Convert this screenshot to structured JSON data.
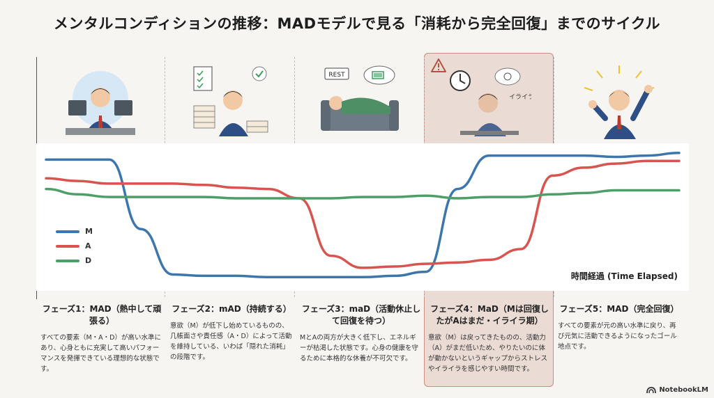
{
  "title": "メンタルコンディションの推移：MADモデルで見る「消耗から完全回復」までのサイクル",
  "illustrations": {
    "rest_sign": "REST",
    "irritation_word": "イライラ"
  },
  "phases": [
    {
      "title": "フェーズ1：MAD（熱中して頑張る）",
      "desc": "すべての要素（M・A・D）が高い水準にあり、心身ともに充実して高いパフォーマンスを発揮できている理想的な状態です。"
    },
    {
      "title": "フェーズ2：mAD（持続する）",
      "desc": "意欲（M）が低下し始めているものの、几帳面さや責任感（A・D）によって活動を維持している、いわば「隠れた消耗」の段階です。"
    },
    {
      "title": "フェーズ3：maD（活動休止して回復を待つ）",
      "desc": "MとAの両方が大きく低下し、エネルギーが枯渇した状態です。心身の健康を守るために本格的な休養が不可欠です。"
    },
    {
      "title": "フェーズ4：MaD（Mは回復したがAはまだ・イライラ期）",
      "desc": "意欲（M）は戻ってきたものの、活動力（A）がまだ低いため、やりたいのに体が動かないというギャップからストレスやイライラを感じやすい時間です。"
    },
    {
      "title": "フェーズ5：MAD（完全回復）",
      "desc": "すべての要素が元の高い水準に戻り、再び元気に活動できるようになったゴール地点です。"
    }
  ],
  "brand": "NotebookLM",
  "chart_data": {
    "type": "line",
    "title": "",
    "xlabel": "時間経過 (Time Elapsed)",
    "ylabel": "",
    "x": [
      0,
      5,
      10,
      15,
      20,
      25,
      30,
      35,
      40,
      45,
      50,
      55,
      60,
      65,
      70,
      75,
      80,
      85,
      90,
      95,
      100
    ],
    "xlim": [
      0,
      100
    ],
    "ylim": [
      0,
      100
    ],
    "grid": false,
    "legend_position": "left",
    "series": [
      {
        "name": "M",
        "color": "#3c76ad",
        "values": [
          92,
          92,
          92,
          40,
          6,
          5,
          5,
          4,
          4,
          4,
          4,
          5,
          8,
          70,
          95,
          95,
          95,
          95,
          94,
          95,
          97
        ]
      },
      {
        "name": "A",
        "color": "#d9534f",
        "values": [
          78,
          76,
          74,
          74,
          74,
          73,
          71,
          70,
          63,
          20,
          11,
          12,
          14,
          15,
          17,
          25,
          80,
          86,
          89,
          91,
          91
        ]
      },
      {
        "name": "D",
        "color": "#4e9e68",
        "values": [
          70,
          66,
          64,
          64,
          64,
          64,
          63,
          63,
          63,
          63,
          64,
          64,
          65,
          63,
          64,
          64,
          66,
          67,
          69,
          69,
          69
        ]
      }
    ]
  }
}
